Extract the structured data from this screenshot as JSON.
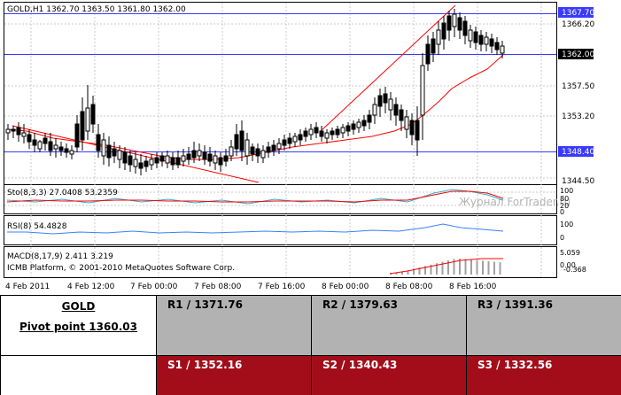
{
  "chart": {
    "header": "GOLD,H1  1362.70  1363.50  1361.80  1362.00",
    "price_labels": [
      "1366.20",
      "1357.50",
      "1353.20",
      "1348.40",
      "1344.50"
    ],
    "current_price_label": "1362.00",
    "high_line_label": "1367.70",
    "support_line_label": "1348.40",
    "watermark": "Журнал ForTrader.ru",
    "stoch_label": "Sto(8,3,3) 27.0408 53.2359",
    "stoch_scale": [
      "100",
      "80",
      "20",
      "0"
    ],
    "rsi_label": "RSI(8) 54.4828",
    "rsi_scale": [
      "100",
      "0"
    ],
    "macd_label": "MACD(8,17,9) 2.411 3.219",
    "macd_copyright": "ICMB Platform, © 2001-2010 MetaQuotes Software Corp.",
    "macd_scale": [
      "5.059",
      "0.00",
      "-0.368"
    ],
    "time_labels": [
      "4 Feb 2011",
      "4 Feb 12:00",
      "7 Feb 00:00",
      "7 Feb 08:00",
      "7 Feb 16:00",
      "8 Feb 00:00",
      "8 Feb 08:00",
      "8 Feb 16:00"
    ],
    "colors": {
      "hline": "#3a3aff",
      "trend": "#ff0000",
      "candle": "#000000",
      "stoch_main": "#33aacc",
      "stoch_signal": "#ff0000",
      "rsi": "#3a7fff",
      "macd_hist": "#a0a0a0",
      "macd_signal": "#ff0000",
      "label_box": "#3a3aff"
    }
  },
  "pivot": {
    "symbol": "GOLD",
    "pivot_text": "Pivot point 1360.03",
    "resistances": [
      "R1 / 1371.76",
      "R2 / 1379.63",
      "R3 / 1391.36"
    ],
    "supports": [
      "S1 / 1352.16",
      "S2 / 1340.43",
      "S3 / 1332.56"
    ],
    "colors": {
      "resistance_bg": "#b2b2b2",
      "support_bg": "#a30d1a"
    }
  }
}
